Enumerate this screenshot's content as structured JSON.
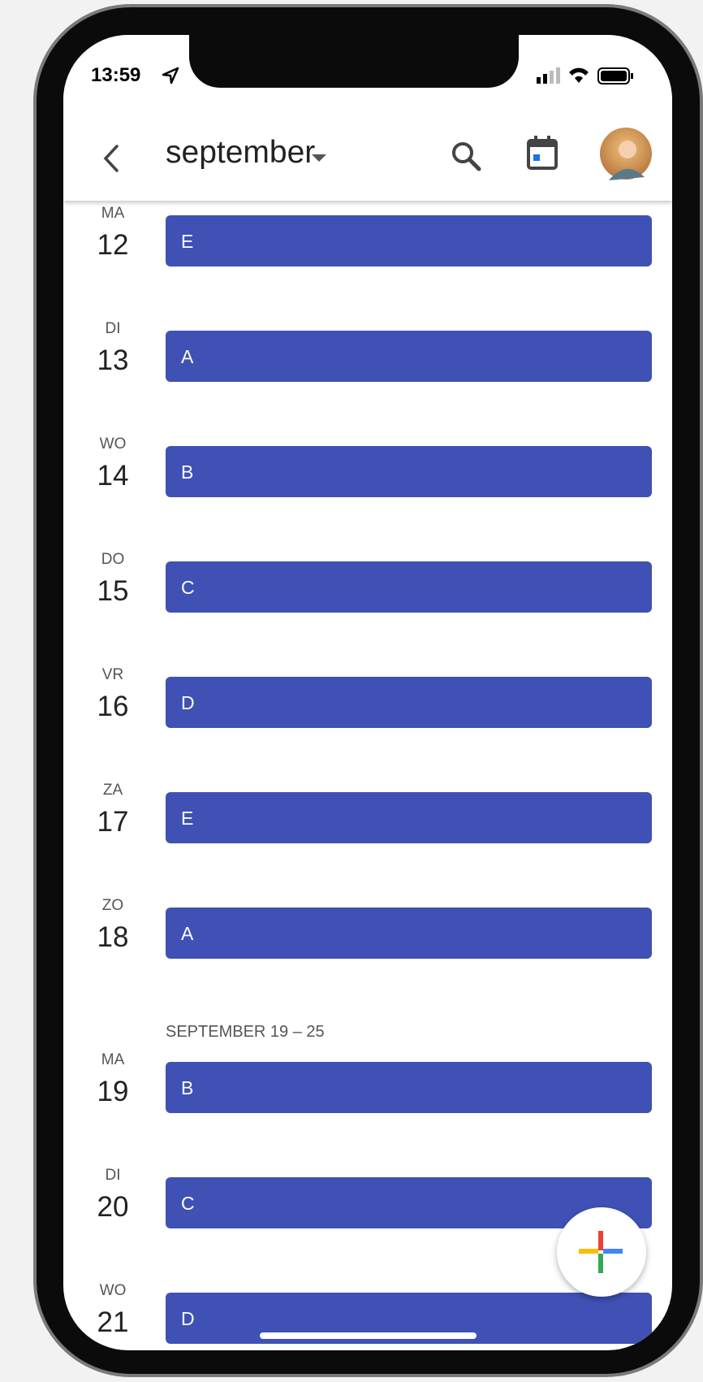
{
  "status_bar": {
    "time": "13:59"
  },
  "header": {
    "title": "september"
  },
  "sections": [
    {
      "days": [
        {
          "weekday": "MA",
          "day": 12,
          "event": "E"
        },
        {
          "weekday": "DI",
          "day": 13,
          "event": "A"
        },
        {
          "weekday": "WO",
          "day": 14,
          "event": "B"
        },
        {
          "weekday": "DO",
          "day": 15,
          "event": "C"
        },
        {
          "weekday": "VR",
          "day": 16,
          "event": "D"
        },
        {
          "weekday": "ZA",
          "day": 17,
          "event": "E"
        },
        {
          "weekday": "ZO",
          "day": 18,
          "event": "A"
        }
      ]
    },
    {
      "heading": "SEPTEMBER 19 – 25",
      "days": [
        {
          "weekday": "MA",
          "day": 19,
          "event": "B"
        },
        {
          "weekday": "DI",
          "day": 20,
          "event": "C"
        },
        {
          "weekday": "WO",
          "day": 21,
          "event": "D"
        }
      ]
    }
  ]
}
